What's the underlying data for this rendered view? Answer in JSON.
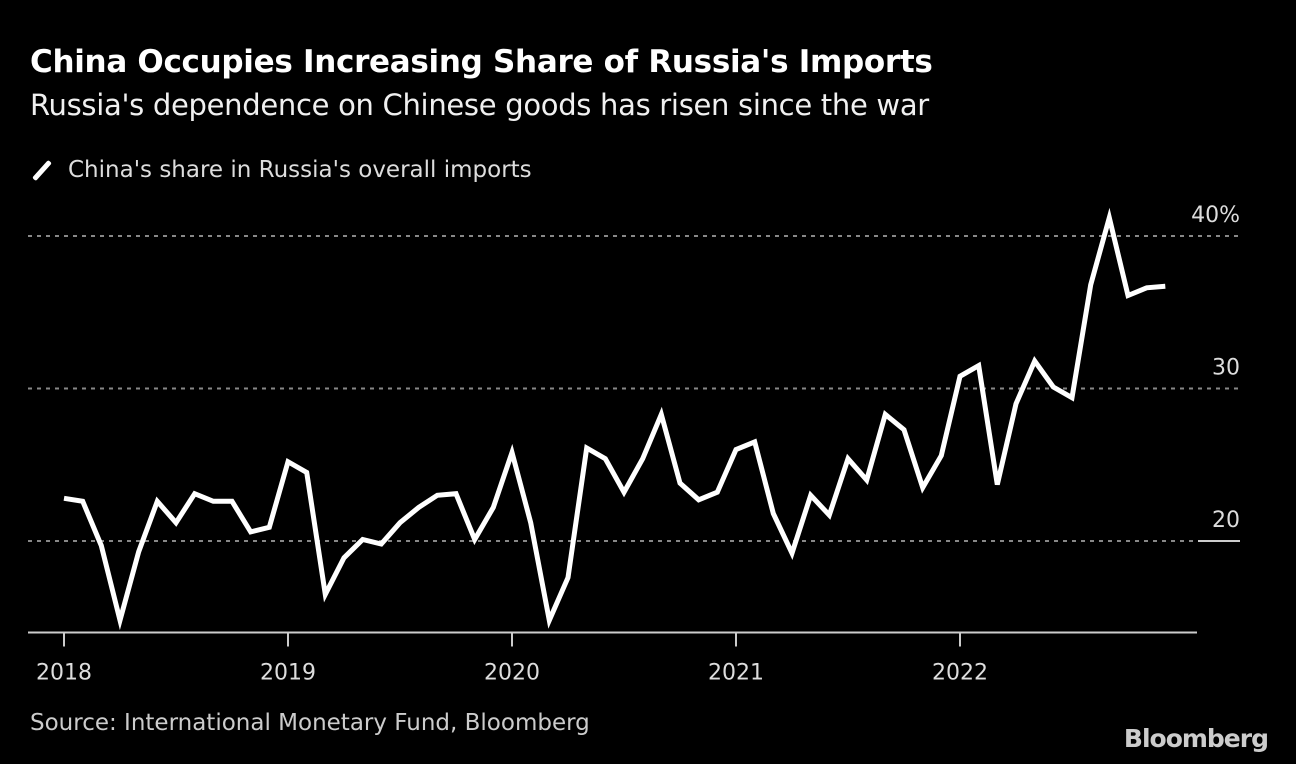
{
  "title": "China Occupies Increasing Share of Russia's Imports",
  "subtitle": "Russia's dependence on Chinese goods has risen since the war",
  "source": "Source: International Monetary Fund, Bloomberg",
  "logo": "Bloomberg",
  "chart_data": {
    "type": "line",
    "title": "China Occupies Increasing Share of Russia's Imports",
    "subtitle": "Russia's dependence on Chinese goods has risen since the war",
    "xlabel": "",
    "ylabel": "",
    "ylim": [
      14,
      42
    ],
    "y_ticks": [
      {
        "value": 20,
        "label": "20"
      },
      {
        "value": 30,
        "label": "30"
      },
      {
        "value": 40,
        "label": "40%"
      }
    ],
    "x_ticks": [
      "2018",
      "2019",
      "2020",
      "2021",
      "2022"
    ],
    "grid": "horizontal dotted",
    "legend": "top-left",
    "line_color": "#ffffff",
    "series": [
      {
        "name": "China's share in Russia's overall imports",
        "x": [
          "2018-01",
          "2018-02",
          "2018-03",
          "2018-04",
          "2018-05",
          "2018-06",
          "2018-07",
          "2018-08",
          "2018-09",
          "2018-10",
          "2018-11",
          "2018-12",
          "2019-01",
          "2019-02",
          "2019-03",
          "2019-04",
          "2019-05",
          "2019-06",
          "2019-07",
          "2019-08",
          "2019-09",
          "2019-10",
          "2019-11",
          "2019-12",
          "2020-01",
          "2020-02",
          "2020-03",
          "2020-04",
          "2020-05",
          "2020-06",
          "2020-07",
          "2020-08",
          "2020-09",
          "2020-10",
          "2020-11",
          "2020-12",
          "2021-01",
          "2021-02",
          "2021-03",
          "2021-04",
          "2021-05",
          "2021-06",
          "2021-07",
          "2021-08",
          "2021-09",
          "2021-10",
          "2021-11",
          "2021-12",
          "2022-01",
          "2022-02",
          "2022-03",
          "2022-04",
          "2022-05",
          "2022-06",
          "2022-07",
          "2022-08",
          "2022-09",
          "2022-10",
          "2022-11",
          "2022-12"
        ],
        "values": [
          22.8,
          22.6,
          19.7,
          14.8,
          19.3,
          22.6,
          21.2,
          23.1,
          22.6,
          22.6,
          20.6,
          20.9,
          25.2,
          24.5,
          16.5,
          18.9,
          20.1,
          19.8,
          21.2,
          22.2,
          23.0,
          23.1,
          20.1,
          22.2,
          25.8,
          21.2,
          14.8,
          17.6,
          26.1,
          25.4,
          23.2,
          25.4,
          28.3,
          23.8,
          22.7,
          23.2,
          26.0,
          26.5,
          21.8,
          19.2,
          23.0,
          21.7,
          25.4,
          24.0,
          28.3,
          27.3,
          23.5,
          25.6,
          30.8,
          31.5,
          23.7,
          29.0,
          31.8,
          30.1,
          29.4,
          36.8,
          41.2,
          36.1,
          36.6,
          36.7
        ]
      }
    ]
  }
}
